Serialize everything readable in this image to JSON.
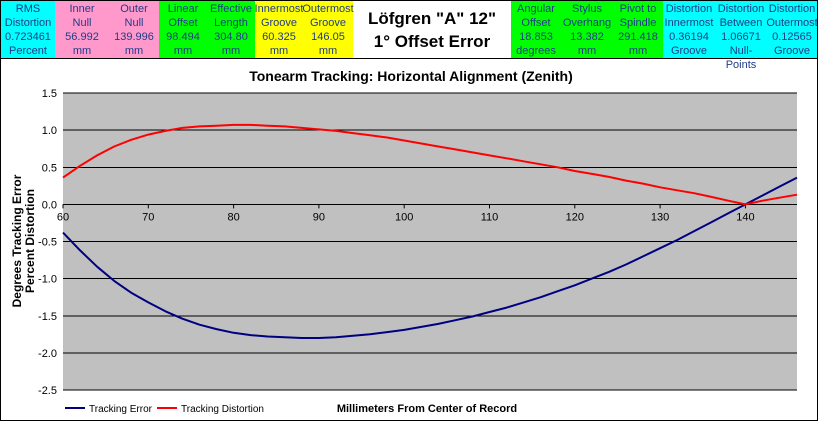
{
  "header": {
    "title_line1": "Löfgren \"A\" 12\"",
    "title_line2": "1° Offset Error",
    "cells": [
      {
        "l1": "RMS",
        "l2": "Distortion",
        "l3": "0.723461",
        "l4": "Percent",
        "color": "#00ffff"
      },
      {
        "l1": "Inner",
        "l2": "Null",
        "l3": "56.992",
        "l4": "mm",
        "color": "#ff99cc"
      },
      {
        "l1": "Outer",
        "l2": "Null",
        "l3": "139.996",
        "l4": "mm",
        "color": "#ff99cc"
      },
      {
        "l1": "Linear",
        "l2": "Offset",
        "l3": "98.494",
        "l4": "mm",
        "color": "#00ff00"
      },
      {
        "l1": "Effective",
        "l2": "Length",
        "l3": "304.80",
        "l4": "mm",
        "color": "#00ff00"
      },
      {
        "l1": "Innermost",
        "l2": "Groove",
        "l3": "60.325",
        "l4": "mm",
        "color": "#ffff00"
      },
      {
        "l1": "Outermost",
        "l2": "Groove",
        "l3": "146.05",
        "l4": "mm",
        "color": "#ffff00"
      },
      {
        "l1": "Angular",
        "l2": "Offset",
        "l3": "18.853",
        "l4": "degrees",
        "color": "#00ff00"
      },
      {
        "l1": "Stylus",
        "l2": "Overhang",
        "l3": "13.382",
        "l4": "mm",
        "color": "#00ff00"
      },
      {
        "l1": "Pivot to",
        "l2": "Spindle",
        "l3": "291.418",
        "l4": "mm",
        "color": "#00ff00"
      },
      {
        "l1": "Distortion",
        "l2": "Innermost",
        "l3": "0.36194",
        "l4": "Groove",
        "color": "#00ffff"
      },
      {
        "l1": "Distortion",
        "l2": "Between",
        "l3": "1.06671",
        "l4": "Null-Points",
        "color": "#00ffff"
      },
      {
        "l1": "Distortion",
        "l2": "Outermost",
        "l3": "0.12565",
        "l4": "Groove",
        "color": "#00ffff"
      }
    ]
  },
  "chart_data": {
    "type": "line",
    "title": "Tonearm Tracking:  Horizontal Alignment (Zenith)",
    "xlabel": "Millimeters From Center of Record",
    "ylabel_line1": "Degrees Tracking Error",
    "ylabel_line2": "Percent Distortion",
    "xlim": [
      60,
      146.05
    ],
    "ylim": [
      -2.5,
      1.5
    ],
    "x_ticks": [
      60,
      70,
      80,
      90,
      100,
      110,
      120,
      130,
      140
    ],
    "y_ticks": [
      1.5,
      1.0,
      0.5,
      0.0,
      -0.5,
      -1.0,
      -1.5,
      -2.0,
      -2.5
    ],
    "x_tick_labels": [
      "60",
      "70",
      "80",
      "90",
      "100",
      "110",
      "120",
      "130",
      "140"
    ],
    "y_tick_labels": [
      "1.5",
      "1.0",
      "0.5",
      "0.0",
      "-0.5",
      "-1.0",
      "-1.5",
      "-2.0",
      "-2.5"
    ],
    "grid": "horizontal",
    "legend_position": "bottom-left",
    "plot_background": "#c0c0c0",
    "series": [
      {
        "name": "Tracking Error",
        "color": "#000080",
        "x": [
          60,
          62,
          64,
          66,
          68,
          70,
          72,
          74,
          76,
          78,
          80,
          82,
          84,
          86,
          88,
          90,
          92,
          94,
          96,
          98,
          100,
          102,
          104,
          106,
          108,
          110,
          112,
          114,
          116,
          118,
          120,
          122,
          124,
          126,
          128,
          130,
          132,
          134,
          136,
          138,
          140,
          142,
          144,
          146.05
        ],
        "values": [
          -0.38,
          -0.62,
          -0.84,
          -1.03,
          -1.19,
          -1.32,
          -1.44,
          -1.54,
          -1.62,
          -1.68,
          -1.73,
          -1.76,
          -1.78,
          -1.79,
          -1.8,
          -1.8,
          -1.79,
          -1.77,
          -1.75,
          -1.72,
          -1.69,
          -1.65,
          -1.61,
          -1.56,
          -1.51,
          -1.45,
          -1.39,
          -1.32,
          -1.25,
          -1.17,
          -1.09,
          -1.0,
          -0.91,
          -0.81,
          -0.7,
          -0.59,
          -0.48,
          -0.36,
          -0.24,
          -0.12,
          0.0,
          0.12,
          0.24,
          0.36
        ]
      },
      {
        "name": "Tracking Distortion",
        "color": "#ff0000",
        "x": [
          60,
          62,
          64,
          66,
          68,
          70,
          72,
          74,
          76,
          78,
          80,
          82,
          84,
          86,
          88,
          90,
          92,
          94,
          96,
          98,
          100,
          102,
          104,
          106,
          108,
          110,
          112,
          114,
          116,
          118,
          120,
          122,
          124,
          126,
          128,
          130,
          132,
          134,
          136,
          138,
          140,
          142,
          144,
          146.05
        ],
        "values": [
          0.36,
          0.52,
          0.66,
          0.78,
          0.87,
          0.94,
          0.99,
          1.03,
          1.05,
          1.06,
          1.07,
          1.07,
          1.06,
          1.05,
          1.03,
          1.01,
          0.99,
          0.96,
          0.93,
          0.9,
          0.86,
          0.82,
          0.78,
          0.74,
          0.7,
          0.66,
          0.62,
          0.58,
          0.54,
          0.5,
          0.45,
          0.41,
          0.37,
          0.32,
          0.28,
          0.23,
          0.19,
          0.15,
          0.1,
          0.05,
          0.0,
          0.05,
          0.09,
          0.13
        ]
      }
    ]
  }
}
